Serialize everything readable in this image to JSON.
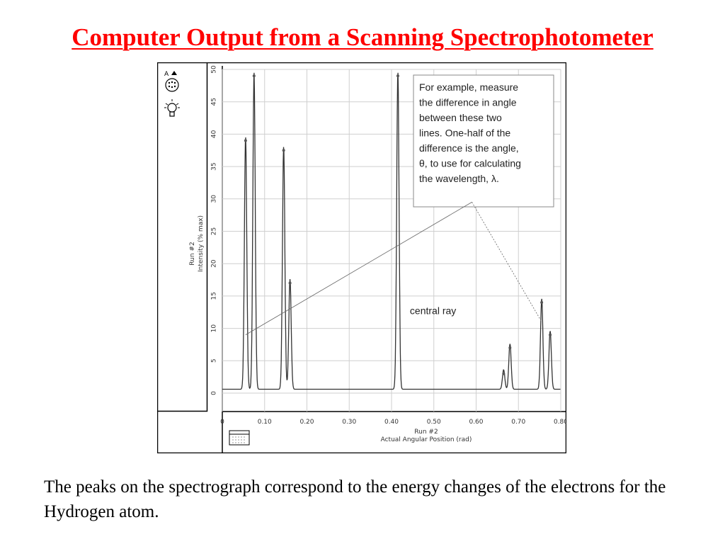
{
  "slide": {
    "title": "Computer Output from a Scanning Spectrophotometer",
    "caption": "The peaks on the spectrograph correspond to the energy changes of the electrons for the Hydrogen atom."
  },
  "colors": {
    "title": "#ff0000",
    "trace": "#333333",
    "grid": "#cfcfcf"
  },
  "icons": [
    "sensor-a-icon",
    "light-bulb-icon",
    "data-table-icon"
  ],
  "chart_data": {
    "type": "line",
    "xlabel": "Actual Angular Position (rad)",
    "xlabel_run": "Run #2",
    "ylabel": "Intensity (% max)",
    "ylabel_run": "Run #2",
    "xlim": [
      0,
      0.8
    ],
    "ylim": [
      0,
      50
    ],
    "x_ticks": [
      "0",
      "0.10",
      "0.20",
      "0.30",
      "0.40",
      "0.50",
      "0.60",
      "0.70",
      "0.80"
    ],
    "y_ticks": [
      "0",
      "5",
      "10",
      "15",
      "20",
      "25",
      "30",
      "35",
      "40",
      "45",
      "50"
    ],
    "grid": true,
    "series": [
      {
        "name": "Run #2",
        "peaks": [
          {
            "x": 0.055,
            "y": 39
          },
          {
            "x": 0.075,
            "y": 49
          },
          {
            "x": 0.145,
            "y": 37.5
          },
          {
            "x": 0.16,
            "y": 17
          },
          {
            "x": 0.415,
            "y": 49
          },
          {
            "x": 0.665,
            "y": 3
          },
          {
            "x": 0.68,
            "y": 7
          },
          {
            "x": 0.755,
            "y": 14
          },
          {
            "x": 0.775,
            "y": 9
          }
        ]
      }
    ],
    "annotations": {
      "box_lines": [
        "For example, measure",
        "the difference in angle",
        "between these two",
        "lines. One-half of the",
        "difference is the angle,",
        "θ, to use for calculating",
        "the wavelength, λ."
      ],
      "central_ray": "central ray"
    }
  }
}
